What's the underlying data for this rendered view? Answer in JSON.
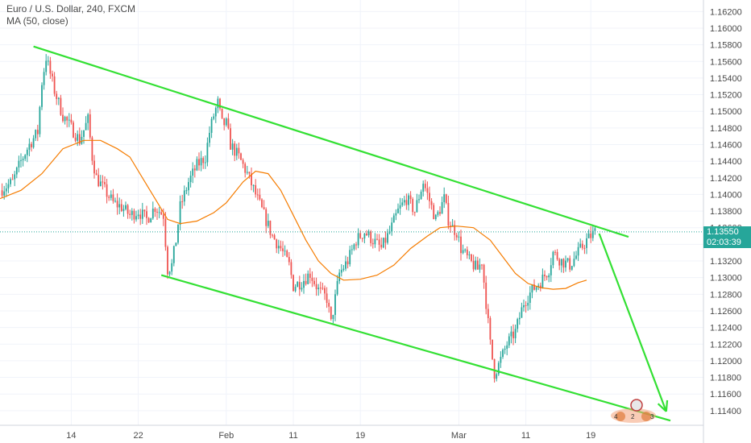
{
  "header": {
    "title": "Euro / U.S. Dollar, 240, FXCM",
    "indicator": "MA (50, close)"
  },
  "price_scale": {
    "ticks": [
      "1.16200",
      "1.16000",
      "1.15800",
      "1.15600",
      "1.15400",
      "1.15200",
      "1.15000",
      "1.14800",
      "1.14600",
      "1.14400",
      "1.14200",
      "1.14000",
      "1.13800",
      "1.13600",
      "1.13400",
      "1.13200",
      "1.13000",
      "1.12800",
      "1.12600",
      "1.12400",
      "1.12200",
      "1.12000",
      "1.11800",
      "1.11600",
      "1.11400"
    ],
    "last_price": "1.13550",
    "countdown": "02:03:39"
  },
  "time_scale": {
    "ticks": [
      "14",
      "22",
      "Feb",
      "11",
      "19",
      "Mar",
      "11",
      "19"
    ]
  },
  "colors": {
    "up": "#26a69a",
    "down": "#ef5350",
    "ma": "#f57c00",
    "trendline": "#33e033",
    "last_price_line": "#26a69a",
    "grid": "#f0f3fa"
  },
  "chart_data": {
    "type": "candlestick",
    "symbol": "EURUSD",
    "timeframe": "240",
    "ylim": [
      1.1135,
      1.163
    ],
    "x_domain": [
      0,
      300
    ],
    "last_price": 1.1355,
    "close_path": [
      [
        0,
        1.1405
      ],
      [
        6,
        1.1415
      ],
      [
        10,
        1.144
      ],
      [
        14,
        1.146
      ],
      [
        18,
        1.1475
      ],
      [
        20,
        1.1535
      ],
      [
        22,
        1.1565
      ],
      [
        26,
        1.1525
      ],
      [
        30,
        1.1495
      ],
      [
        34,
        1.148
      ],
      [
        38,
        1.1465
      ],
      [
        42,
        1.149
      ],
      [
        44,
        1.1445
      ],
      [
        46,
        1.142
      ],
      [
        50,
        1.1405
      ],
      [
        54,
        1.139
      ],
      [
        58,
        1.1385
      ],
      [
        62,
        1.1375
      ],
      [
        66,
        1.138
      ],
      [
        70,
        1.137
      ],
      [
        74,
        1.1385
      ],
      [
        78,
        1.1375
      ],
      [
        80,
        1.131
      ],
      [
        82,
        1.1315
      ],
      [
        84,
        1.1345
      ],
      [
        86,
        1.1385
      ],
      [
        90,
        1.1415
      ],
      [
        94,
        1.1435
      ],
      [
        98,
        1.1445
      ],
      [
        100,
        1.1475
      ],
      [
        102,
        1.1495
      ],
      [
        104,
        1.151
      ],
      [
        106,
        1.1485
      ],
      [
        108,
        1.1485
      ],
      [
        110,
        1.146
      ],
      [
        114,
        1.1445
      ],
      [
        118,
        1.1425
      ],
      [
        122,
        1.14
      ],
      [
        126,
        1.1375
      ],
      [
        130,
        1.135
      ],
      [
        134,
        1.1335
      ],
      [
        138,
        1.1315
      ],
      [
        140,
        1.129
      ],
      [
        144,
        1.1295
      ],
      [
        148,
        1.1305
      ],
      [
        152,
        1.1285
      ],
      [
        156,
        1.1275
      ],
      [
        158,
        1.1245
      ],
      [
        162,
        1.1305
      ],
      [
        166,
        1.132
      ],
      [
        170,
        1.1345
      ],
      [
        174,
        1.1355
      ],
      [
        178,
        1.1345
      ],
      [
        182,
        1.1335
      ],
      [
        186,
        1.1355
      ],
      [
        190,
        1.138
      ],
      [
        194,
        1.1395
      ],
      [
        198,
        1.138
      ],
      [
        202,
        1.1415
      ],
      [
        206,
        1.1385
      ],
      [
        208,
        1.137
      ],
      [
        212,
        1.1395
      ],
      [
        214,
        1.137
      ],
      [
        216,
        1.136
      ],
      [
        218,
        1.1355
      ],
      [
        220,
        1.1335
      ],
      [
        224,
        1.132
      ],
      [
        228,
        1.131
      ],
      [
        230,
        1.132
      ],
      [
        232,
        1.127
      ],
      [
        234,
        1.122
      ],
      [
        236,
        1.1185
      ],
      [
        238,
        1.1195
      ],
      [
        242,
        1.122
      ],
      [
        246,
        1.1235
      ],
      [
        250,
        1.127
      ],
      [
        254,
        1.1285
      ],
      [
        258,
        1.1295
      ],
      [
        262,
        1.131
      ],
      [
        264,
        1.133
      ],
      [
        268,
        1.132
      ],
      [
        272,
        1.1315
      ],
      [
        276,
        1.133
      ],
      [
        280,
        1.1345
      ],
      [
        284,
        1.1355
      ]
    ],
    "ma50": [
      [
        0,
        1.1395
      ],
      [
        10,
        1.1405
      ],
      [
        20,
        1.1425
      ],
      [
        30,
        1.1455
      ],
      [
        40,
        1.1465
      ],
      [
        48,
        1.1465
      ],
      [
        56,
        1.1455
      ],
      [
        62,
        1.1445
      ],
      [
        68,
        1.142
      ],
      [
        74,
        1.1395
      ],
      [
        80,
        1.137
      ],
      [
        86,
        1.1365
      ],
      [
        94,
        1.1368
      ],
      [
        102,
        1.1378
      ],
      [
        108,
        1.139
      ],
      [
        116,
        1.1415
      ],
      [
        122,
        1.1428
      ],
      [
        128,
        1.1425
      ],
      [
        134,
        1.1405
      ],
      [
        140,
        1.1375
      ],
      [
        146,
        1.1345
      ],
      [
        152,
        1.132
      ],
      [
        158,
        1.1305
      ],
      [
        164,
        1.1297
      ],
      [
        172,
        1.1298
      ],
      [
        180,
        1.1303
      ],
      [
        188,
        1.1315
      ],
      [
        196,
        1.1335
      ],
      [
        204,
        1.135
      ],
      [
        210,
        1.136
      ],
      [
        218,
        1.1362
      ],
      [
        226,
        1.136
      ],
      [
        234,
        1.1345
      ],
      [
        240,
        1.1325
      ],
      [
        246,
        1.1305
      ],
      [
        252,
        1.1293
      ],
      [
        258,
        1.1288
      ],
      [
        264,
        1.1286
      ],
      [
        270,
        1.1287
      ],
      [
        276,
        1.1294
      ],
      [
        280,
        1.1297
      ]
    ],
    "trendlines": [
      {
        "name": "upper",
        "from": [
          16,
          1.1578
        ],
        "to": [
          300,
          1.1349
        ]
      },
      {
        "name": "lower",
        "from": [
          77,
          1.1303
        ],
        "to": [
          320,
          1.1128
        ]
      }
    ],
    "arrow": {
      "from": [
        286,
        1.1353
      ],
      "to": [
        318,
        1.1139
      ]
    },
    "x_ticks": [
      {
        "label": "14",
        "x": 34
      },
      {
        "label": "22",
        "x": 66
      },
      {
        "label": "Feb",
        "x": 108
      },
      {
        "label": "11",
        "x": 140
      },
      {
        "label": "19",
        "x": 172
      },
      {
        "label": "Mar",
        "x": 219
      },
      {
        "label": "11",
        "x": 251
      },
      {
        "label": "19",
        "x": 282
      }
    ],
    "grid": true
  }
}
